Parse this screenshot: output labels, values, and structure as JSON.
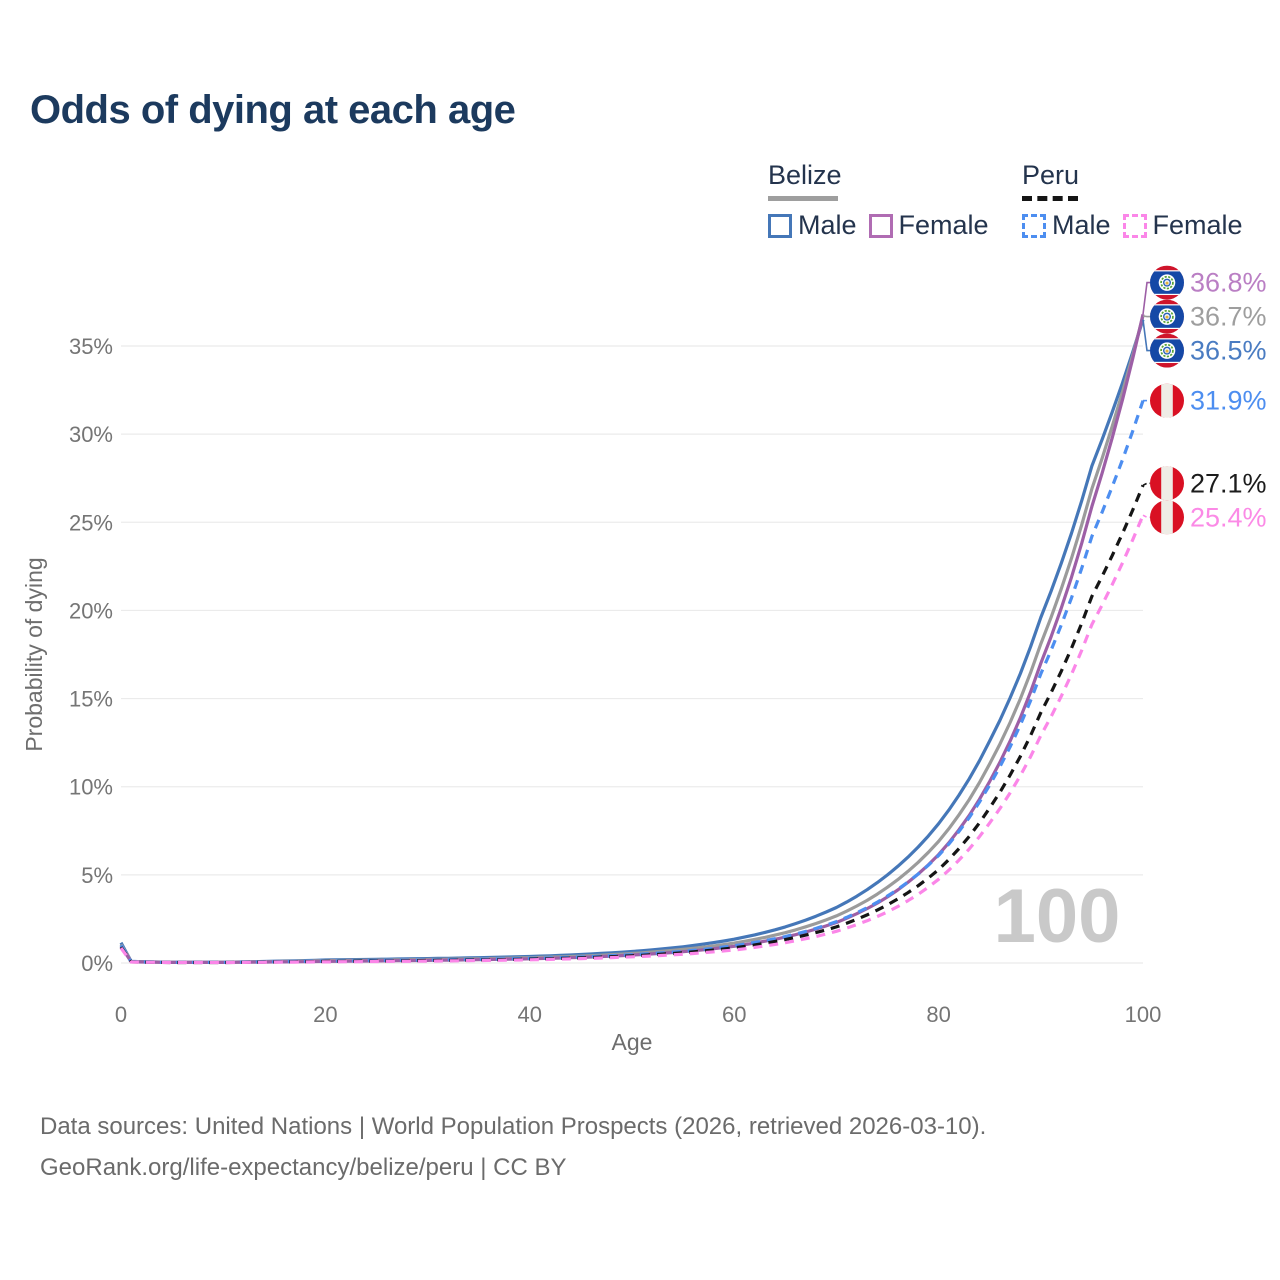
{
  "title": "Odds of dying at each age",
  "watermark": "100",
  "legend": {
    "groups": [
      {
        "country": "Belize",
        "style": "solid",
        "underline_color": "#9e9e9e",
        "items": [
          {
            "label": "Male",
            "color": "#4577b8"
          },
          {
            "label": "Female",
            "color": "#b06cb3"
          }
        ]
      },
      {
        "country": "Peru",
        "style": "dashed",
        "underline_color": "#151515",
        "items": [
          {
            "label": "Male",
            "color": "#4d8ef0"
          },
          {
            "label": "Female",
            "color": "#fb86e8"
          }
        ]
      }
    ]
  },
  "footer": {
    "line1": "Data sources: United Nations | World Population Prospects (2026, retrieved 2026-03-10).",
    "line2": "GeoRank.org/life-expectancy/belize/peru | CC BY"
  },
  "chart_data": {
    "type": "line",
    "title": "Odds of dying at each age",
    "xlabel": "Age",
    "ylabel": "Probability of dying",
    "xlim": [
      0,
      100
    ],
    "ylim_percent": [
      0,
      38.5
    ],
    "grid": "horizontal",
    "legend_position": "top-right",
    "x_ticks": [
      {
        "label": "0",
        "value": 0
      },
      {
        "label": "20",
        "value": 20
      },
      {
        "label": "40",
        "value": 40
      },
      {
        "label": "60",
        "value": 60
      },
      {
        "label": "80",
        "value": 80
      },
      {
        "label": "100",
        "value": 100
      }
    ],
    "y_ticks": [
      {
        "label": "0%",
        "value": 0
      },
      {
        "label": "5%",
        "value": 5
      },
      {
        "label": "10%",
        "value": 10
      },
      {
        "label": "15%",
        "value": 15
      },
      {
        "label": "20%",
        "value": 20
      },
      {
        "label": "25%",
        "value": 25
      },
      {
        "label": "30%",
        "value": 30
      },
      {
        "label": "35%",
        "value": 35
      }
    ],
    "ages": [
      0,
      1,
      5,
      10,
      15,
      20,
      25,
      30,
      35,
      40,
      45,
      50,
      55,
      60,
      65,
      70,
      75,
      80,
      85,
      90,
      95,
      100
    ],
    "series": [
      {
        "id": "belize-male",
        "name": "Belize Male",
        "flag": "belize",
        "dash": "solid",
        "color": "#4577b8",
        "label_color": "#4a7cc2",
        "end_label": "36.5%",
        "values": [
          1.15,
          0.09,
          0.045,
          0.045,
          0.1,
          0.17,
          0.21,
          0.25,
          0.3,
          0.37,
          0.48,
          0.65,
          0.92,
          1.35,
          2.05,
          3.15,
          5.0,
          7.9,
          12.6,
          19.6,
          28.2,
          36.5
        ]
      },
      {
        "id": "belize-both-sexes",
        "name": "Belize (both sexes)",
        "flag": "belize",
        "dash": "solid",
        "color": "#9b9b9b",
        "label_color": "#9e9e9e",
        "end_label": "36.7%",
        "values": [
          1.05,
          0.08,
          0.04,
          0.04,
          0.08,
          0.13,
          0.16,
          0.2,
          0.24,
          0.3,
          0.39,
          0.54,
          0.77,
          1.13,
          1.72,
          2.67,
          4.3,
          6.9,
          11.3,
          18.1,
          26.9,
          36.7
        ]
      },
      {
        "id": "belize-female",
        "name": "Belize Female",
        "flag": "belize",
        "dash": "solid",
        "color": "#9d5fa6",
        "label_color": "#ba7fc4",
        "end_label": "36.8%",
        "values": [
          0.95,
          0.07,
          0.035,
          0.035,
          0.06,
          0.09,
          0.12,
          0.15,
          0.19,
          0.24,
          0.32,
          0.45,
          0.64,
          0.95,
          1.47,
          2.3,
          3.75,
          6.15,
          10.3,
          17.0,
          25.9,
          36.8
        ]
      },
      {
        "id": "peru-male",
        "name": "Peru Male",
        "flag": "peru",
        "dash": "dashed",
        "color": "#4d8ef0",
        "label_color": "#4d8ef0",
        "end_label": "31.9%",
        "values": [
          1.0,
          0.07,
          0.035,
          0.035,
          0.07,
          0.11,
          0.14,
          0.17,
          0.21,
          0.26,
          0.34,
          0.47,
          0.66,
          0.98,
          1.5,
          2.35,
          3.8,
          6.1,
          10.1,
          16.4,
          24.2,
          31.9
        ]
      },
      {
        "id": "peru-both-sexes",
        "name": "Peru (both sexes)",
        "flag": "peru",
        "dash": "dashed",
        "color": "#151515",
        "label_color": "#1c1c1c",
        "end_label": "27.1%",
        "values": [
          0.9,
          0.06,
          0.03,
          0.03,
          0.055,
          0.09,
          0.11,
          0.14,
          0.17,
          0.22,
          0.29,
          0.41,
          0.58,
          0.86,
          1.33,
          2.05,
          3.3,
          5.3,
          8.8,
          14.2,
          20.8,
          27.1
        ]
      },
      {
        "id": "peru-female",
        "name": "Peru Female",
        "flag": "peru",
        "dash": "dashed",
        "color": "#fb86e8",
        "label_color": "#fb8ae6",
        "end_label": "25.4%",
        "values": [
          0.85,
          0.055,
          0.028,
          0.028,
          0.045,
          0.065,
          0.085,
          0.11,
          0.14,
          0.18,
          0.25,
          0.35,
          0.5,
          0.74,
          1.15,
          1.8,
          2.9,
          4.75,
          7.95,
          12.9,
          19.2,
          25.4
        ]
      }
    ]
  }
}
